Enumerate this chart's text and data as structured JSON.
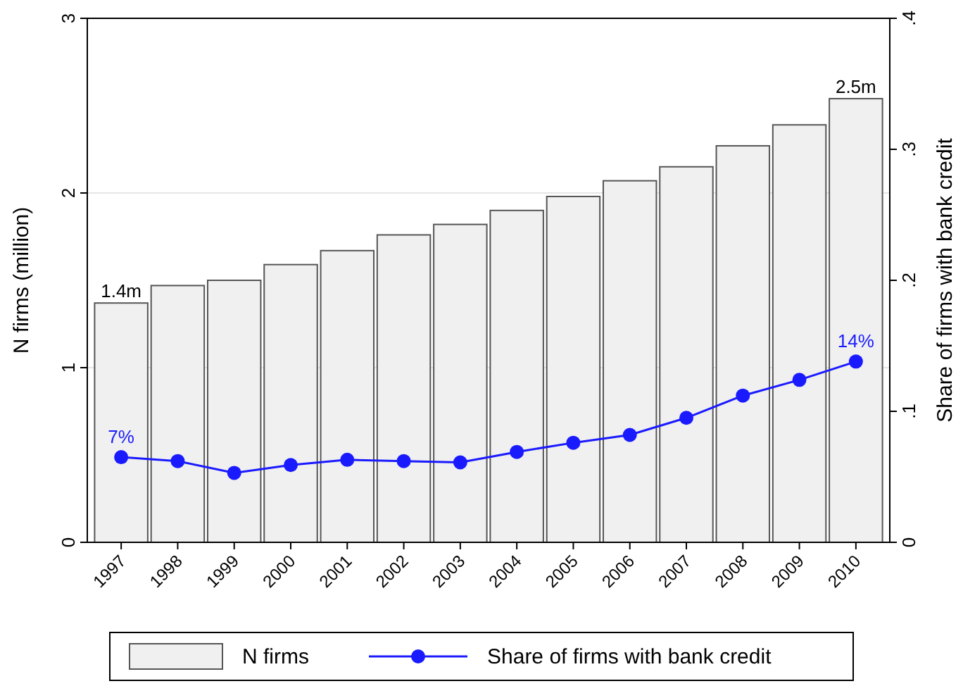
{
  "chart_data": {
    "type": "bar",
    "categories": [
      "1997",
      "1998",
      "1999",
      "2000",
      "2001",
      "2002",
      "2003",
      "2004",
      "2005",
      "2006",
      "2007",
      "2008",
      "2009",
      "2010"
    ],
    "ylabel": "N firms (million)",
    "y2label": "Share of firms with bank credit",
    "ylim": [
      0,
      3
    ],
    "yticks": [
      0,
      1,
      2,
      3
    ],
    "y2lim": [
      0,
      0.4
    ],
    "y2ticks": [
      {
        "value": 0,
        "label": "0"
      },
      {
        "value": 0.1,
        "label": ".1"
      },
      {
        "value": 0.2,
        "label": ".2"
      },
      {
        "value": 0.3,
        "label": ".3"
      },
      {
        "value": 0.4,
        "label": ".4"
      }
    ],
    "series": [
      {
        "name": "N firms",
        "color": "#f0f0f0",
        "values": [
          1.37,
          1.47,
          1.5,
          1.59,
          1.67,
          1.76,
          1.82,
          1.9,
          1.98,
          2.07,
          2.15,
          2.27,
          2.39,
          2.54
        ],
        "value_labels": [
          "1.4m",
          null,
          null,
          null,
          null,
          null,
          null,
          null,
          null,
          null,
          null,
          null,
          null,
          "2.5m"
        ]
      },
      {
        "name": "Share of firms with bank credit",
        "type": "line",
        "axis": "y2",
        "color": "#1a1aff",
        "marker": "circle",
        "values": [
          0.065,
          0.062,
          0.053,
          0.059,
          0.063,
          0.062,
          0.061,
          0.069,
          0.076,
          0.082,
          0.095,
          0.112,
          0.124,
          0.138
        ],
        "value_labels": [
          "7%",
          null,
          null,
          null,
          null,
          null,
          null,
          null,
          null,
          null,
          null,
          null,
          null,
          "14%"
        ]
      }
    ],
    "grid": "y",
    "legend": "bottom"
  }
}
